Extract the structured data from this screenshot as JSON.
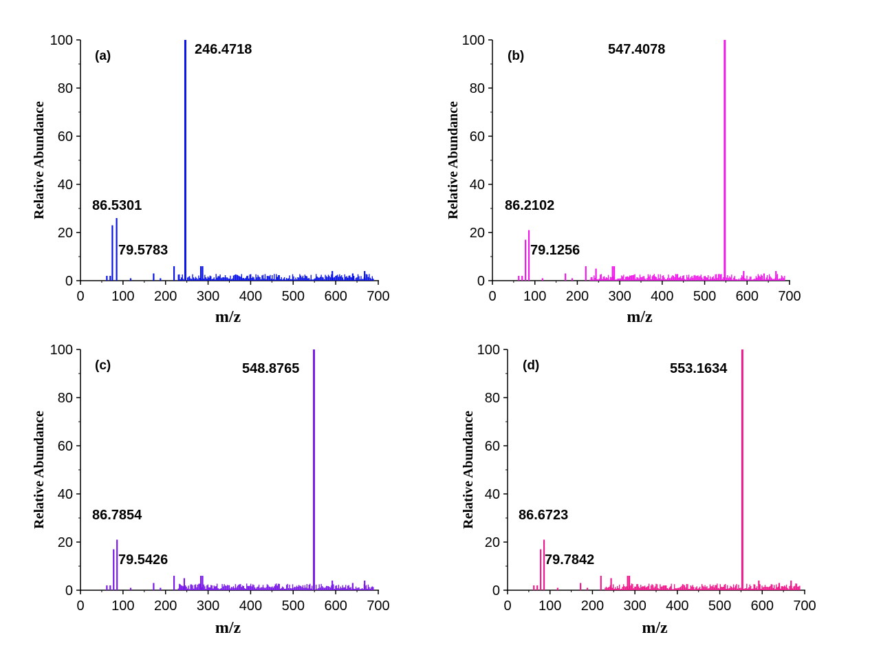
{
  "chart_data": [
    {
      "type": "bar",
      "panel_label": "(a)",
      "color": "#0a14e6",
      "xlabel": "m/z",
      "ylabel": "Relative Abundance",
      "xlim": [
        0,
        700
      ],
      "ylim": [
        0,
        100
      ],
      "xticks": [
        "0",
        "100",
        "200",
        "300",
        "400",
        "500",
        "600",
        "700"
      ],
      "yticks": [
        "0",
        "20",
        "40",
        "60",
        "80",
        "100"
      ],
      "grid": false,
      "base_peak": {
        "mz": 246.4718,
        "label": "246.4718",
        "value": 100
      },
      "annotations": [
        "86.5301",
        "79.5783"
      ],
      "peaks": [
        [
          75,
          23
        ],
        [
          85,
          26
        ],
        [
          62,
          2
        ],
        [
          70,
          2
        ],
        [
          118,
          1
        ],
        [
          172,
          3
        ],
        [
          188,
          1
        ],
        [
          220,
          6
        ],
        [
          246.4718,
          100
        ],
        [
          283,
          6
        ],
        [
          287,
          6
        ],
        [
          592,
          4
        ],
        [
          640,
          3
        ],
        [
          668,
          4
        ]
      ]
    },
    {
      "type": "bar",
      "panel_label": "(b)",
      "color": "#ee1ae8",
      "xlabel": "m/z",
      "ylabel": "Relative Abundance",
      "xlim": [
        0,
        700
      ],
      "ylim": [
        0,
        100
      ],
      "xticks": [
        "0",
        "100",
        "200",
        "300",
        "400",
        "500",
        "600",
        "700"
      ],
      "yticks": [
        "0",
        "20",
        "40",
        "60",
        "80",
        "100"
      ],
      "grid": false,
      "base_peak": {
        "mz": 547.4078,
        "label": "547.4078",
        "value": 100
      },
      "annotations": [
        "86.2102",
        "79.1256"
      ],
      "peaks": [
        [
          78,
          17
        ],
        [
          86,
          21
        ],
        [
          62,
          2
        ],
        [
          70,
          2
        ],
        [
          118,
          1
        ],
        [
          172,
          3
        ],
        [
          188,
          1
        ],
        [
          220,
          6
        ],
        [
          244,
          5
        ],
        [
          283,
          6
        ],
        [
          287,
          6
        ],
        [
          547.4078,
          100
        ],
        [
          592,
          4
        ],
        [
          640,
          3
        ],
        [
          668,
          4
        ]
      ]
    },
    {
      "type": "bar",
      "panel_label": "(c)",
      "color": "#7a1ae8",
      "xlabel": "m/z",
      "ylabel": "Relative Abundance",
      "xlim": [
        0,
        700
      ],
      "ylim": [
        0,
        100
      ],
      "xticks": [
        "0",
        "100",
        "200",
        "300",
        "400",
        "500",
        "600",
        "700"
      ],
      "yticks": [
        "0",
        "20",
        "40",
        "60",
        "80",
        "100"
      ],
      "grid": false,
      "base_peak": {
        "mz": 548.8765,
        "label": "548.8765",
        "value": 100
      },
      "annotations": [
        "86.7854",
        "79.5426"
      ],
      "peaks": [
        [
          78,
          17
        ],
        [
          86,
          21
        ],
        [
          62,
          2
        ],
        [
          70,
          2
        ],
        [
          118,
          1
        ],
        [
          172,
          3
        ],
        [
          188,
          1
        ],
        [
          220,
          6
        ],
        [
          244,
          5
        ],
        [
          283,
          6
        ],
        [
          287,
          6
        ],
        [
          548.8765,
          100
        ],
        [
          592,
          4
        ],
        [
          640,
          3
        ],
        [
          668,
          4
        ]
      ]
    },
    {
      "type": "bar",
      "panel_label": "(d)",
      "color": "#ee1a8c",
      "xlabel": "m/z",
      "ylabel": "Relative Abundance",
      "xlim": [
        0,
        700
      ],
      "ylim": [
        0,
        100
      ],
      "xticks": [
        "0",
        "100",
        "200",
        "300",
        "400",
        "500",
        "600",
        "700"
      ],
      "yticks": [
        "0",
        "20",
        "40",
        "60",
        "80",
        "100"
      ],
      "grid": false,
      "base_peak": {
        "mz": 553.1634,
        "label": "553.1634",
        "value": 100
      },
      "annotations": [
        "86.6723",
        "79.7842"
      ],
      "peaks": [
        [
          78,
          17
        ],
        [
          86,
          21
        ],
        [
          62,
          2
        ],
        [
          70,
          2
        ],
        [
          118,
          1
        ],
        [
          172,
          3
        ],
        [
          188,
          1
        ],
        [
          220,
          6
        ],
        [
          244,
          5
        ],
        [
          283,
          6
        ],
        [
          287,
          6
        ],
        [
          553.1634,
          100
        ],
        [
          592,
          4
        ],
        [
          640,
          3
        ],
        [
          668,
          4
        ]
      ]
    }
  ]
}
